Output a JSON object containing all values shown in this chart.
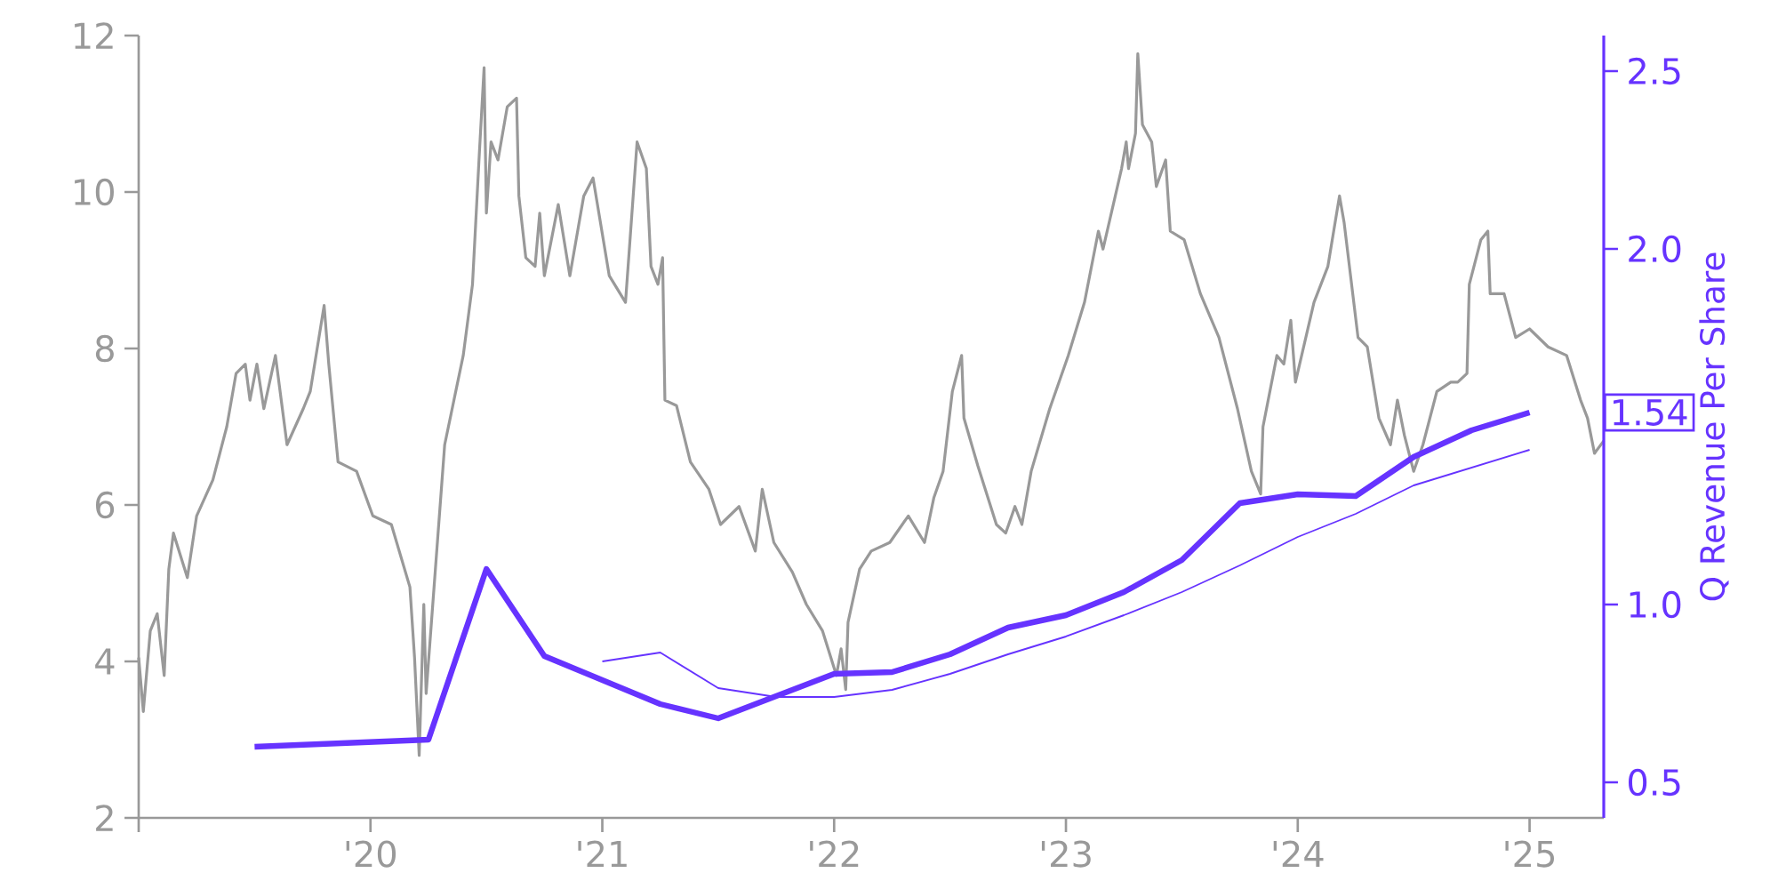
{
  "chart_data": {
    "type": "line",
    "xlim": [
      2019,
      2025.32
    ],
    "ylim": [
      2,
      12
    ],
    "y2lim": [
      0.4,
      2.6
    ],
    "xticks": [
      {
        "value": 2019,
        "label": null
      },
      {
        "value": 2020,
        "label": "'20"
      },
      {
        "value": 2021,
        "label": "'21"
      },
      {
        "value": 2022,
        "label": "'22"
      },
      {
        "value": 2023,
        "label": "'23"
      },
      {
        "value": 2024,
        "label": "'24"
      },
      {
        "value": 2025,
        "label": "'25"
      }
    ],
    "yticks": [
      2,
      4,
      6,
      8,
      10,
      12
    ],
    "y2ticks": [
      {
        "value": 0.5,
        "label": "0.5"
      },
      {
        "value": 1.0,
        "label": "1.0"
      },
      {
        "value": 1.5,
        "label": null
      },
      {
        "value": 2.0,
        "label": "2.0"
      },
      {
        "value": 2.5,
        "label": "2.5"
      }
    ],
    "y2label": "Q Revenue Per Share",
    "annotations": [
      "1.54"
    ],
    "series": [
      {
        "color": "#999999",
        "x": [
          2019.0,
          2019.02,
          2019.05,
          2019.08,
          2019.11,
          2019.13,
          2019.15,
          2019.21,
          2019.25,
          2019.32,
          2019.38,
          2019.42,
          2019.46,
          2019.48,
          2019.51,
          2019.54,
          2019.59,
          2019.64,
          2019.71,
          2019.74,
          2019.8,
          2019.82,
          2019.86,
          2019.94,
          2020.01,
          2020.09,
          2020.17,
          2020.19,
          2020.21,
          2020.23,
          2020.24,
          2020.28,
          2020.32,
          2020.4,
          2020.44,
          2020.47,
          2020.49,
          2020.5,
          2020.52,
          2020.55,
          2020.59,
          2020.63,
          2020.64,
          2020.67,
          2020.71,
          2020.73,
          2020.75,
          2020.81,
          2020.86,
          2020.92,
          2020.96,
          2021.03,
          2021.1,
          2021.15,
          2021.19,
          2021.21,
          2021.24,
          2021.26,
          2021.27,
          2021.32,
          2021.38,
          2021.46,
          2021.51,
          2021.59,
          2021.66,
          2021.69,
          2021.74,
          2021.82,
          2021.88,
          2021.95,
          2022.01,
          2022.03,
          2022.05,
          2022.06,
          2022.11,
          2022.16,
          2022.24,
          2022.32,
          2022.39,
          2022.43,
          2022.47,
          2022.51,
          2022.55,
          2022.56,
          2022.62,
          2022.7,
          2022.74,
          2022.78,
          2022.81,
          2022.85,
          2022.93,
          2023.01,
          2023.08,
          2023.14,
          2023.16,
          2023.24,
          2023.26,
          2023.27,
          2023.3,
          2023.31,
          2023.33,
          2023.37,
          2023.39,
          2023.43,
          2023.45,
          2023.51,
          2023.58,
          2023.66,
          2023.74,
          2023.8,
          2023.84,
          2023.85,
          2023.91,
          2023.94,
          2023.97,
          2023.99,
          2024.07,
          2024.13,
          2024.18,
          2024.2,
          2024.26,
          2024.3,
          2024.35,
          2024.4,
          2024.43,
          2024.46,
          2024.5,
          2024.54,
          2024.6,
          2024.66,
          2024.69,
          2024.73,
          2024.74,
          2024.79,
          2024.82,
          2024.83,
          2024.89,
          2024.94,
          2025.0,
          2025.08,
          2025.16,
          2025.22,
          2025.25,
          2025.28,
          2025.32
        ],
        "values": [
          4.05,
          3.36,
          4.39,
          4.61,
          3.82,
          5.18,
          5.64,
          5.07,
          5.86,
          6.32,
          7.0,
          7.68,
          7.8,
          7.34,
          7.8,
          7.23,
          7.91,
          6.77,
          7.23,
          7.45,
          8.55,
          7.8,
          6.55,
          6.43,
          5.86,
          5.75,
          4.95,
          4.05,
          2.8,
          4.73,
          3.59,
          5.18,
          6.77,
          7.91,
          8.82,
          10.52,
          11.59,
          9.73,
          10.64,
          10.41,
          11.09,
          11.2,
          9.95,
          9.16,
          9.05,
          9.73,
          8.93,
          9.84,
          8.93,
          9.95,
          10.18,
          8.93,
          8.59,
          10.64,
          10.3,
          9.05,
          8.82,
          9.16,
          7.34,
          7.27,
          6.55,
          6.2,
          5.75,
          5.98,
          5.41,
          6.2,
          5.52,
          5.14,
          4.73,
          4.39,
          3.82,
          4.16,
          3.64,
          4.5,
          5.18,
          5.41,
          5.52,
          5.86,
          5.52,
          6.09,
          6.43,
          7.45,
          7.91,
          7.11,
          6.5,
          5.75,
          5.64,
          5.98,
          5.75,
          6.43,
          7.23,
          7.91,
          8.59,
          9.5,
          9.27,
          10.3,
          10.64,
          10.3,
          10.75,
          11.77,
          10.86,
          10.64,
          10.07,
          10.41,
          9.5,
          9.39,
          8.7,
          8.14,
          7.23,
          6.43,
          6.14,
          7.0,
          7.91,
          7.8,
          8.36,
          7.57,
          8.59,
          9.05,
          9.95,
          9.61,
          8.14,
          8.02,
          7.11,
          6.77,
          7.34,
          6.89,
          6.43,
          6.77,
          7.45,
          7.57,
          7.57,
          7.68,
          8.82,
          9.39,
          9.5,
          8.7,
          8.7,
          8.14,
          8.25,
          8.02,
          7.91,
          7.34,
          7.11,
          6.66,
          6.82
        ]
      },
      {
        "color": "#6633ff",
        "axis": "y2",
        "x": [
          2019.5,
          2020.25,
          2020.5,
          2020.75,
          2021.25,
          2021.5,
          2022.0,
          2022.25,
          2022.5,
          2022.75,
          2023.0,
          2023.25,
          2023.5,
          2023.75,
          2024.0,
          2024.25,
          2024.5,
          2024.75,
          2025.0
        ],
        "values": [
          0.6,
          0.62,
          1.1,
          0.855,
          0.72,
          0.68,
          0.805,
          0.81,
          0.86,
          0.935,
          0.97,
          1.035,
          1.125,
          1.285,
          1.31,
          1.305,
          1.415,
          1.49,
          1.54
        ]
      },
      {
        "color": "#6633ff",
        "axis": "y2",
        "x": [
          2021.0,
          2021.25,
          2021.5,
          2021.75,
          2022.0,
          2022.25,
          2022.5,
          2022.75,
          2023.0,
          2023.25,
          2023.5,
          2023.75,
          2024.0,
          2024.25,
          2024.5,
          2024.75,
          2025.0
        ],
        "values": [
          0.84,
          0.865,
          0.765,
          0.74,
          0.74,
          0.76,
          0.805,
          0.86,
          0.91,
          0.97,
          1.035,
          1.11,
          1.19,
          1.255,
          1.335,
          1.385,
          1.435
        ]
      }
    ]
  }
}
